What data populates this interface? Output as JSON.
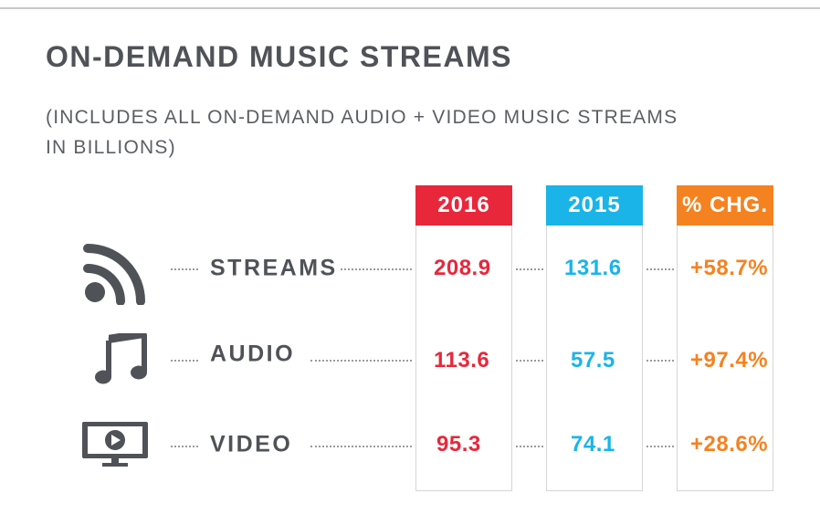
{
  "title": "ON-DEMAND MUSIC STREAMS",
  "subtitle": "(INCLUDES ALL ON-DEMAND AUDIO + VIDEO MUSIC STREAMS IN BILLIONS)",
  "colors": {
    "y2016": "#e8273b",
    "y2015": "#1ab4e8",
    "chg": "#f58220",
    "text": "#4f5358"
  },
  "chart_data": {
    "type": "table",
    "title": "ON-DEMAND MUSIC STREAMS",
    "subtitle": "(INCLUDES ALL ON-DEMAND AUDIO + VIDEO MUSIC STREAMS IN BILLIONS)",
    "columns": [
      "2016",
      "2015",
      "% CHG."
    ],
    "rows": [
      {
        "label": "STREAMS",
        "icon": "streams-icon",
        "y2016": "208.9",
        "y2015": "131.6",
        "chg": "+58.7%"
      },
      {
        "label": "AUDIO",
        "icon": "music-note-icon",
        "y2016": "113.6",
        "y2015": "57.5",
        "chg": "+97.4%"
      },
      {
        "label": "VIDEO",
        "icon": "video-monitor-icon",
        "y2016": "95.3",
        "y2015": "74.1",
        "chg": "+28.6%"
      }
    ]
  }
}
